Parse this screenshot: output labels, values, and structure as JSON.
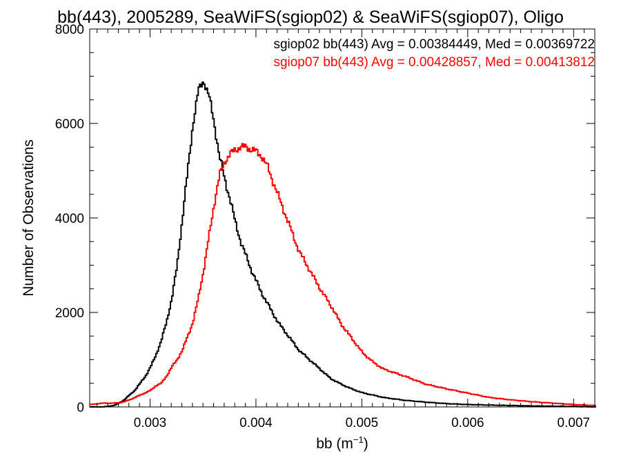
{
  "chart_data": {
    "type": "line",
    "title": "bb(443), 2005289, SeaWiFS(sgiop02) & SeaWiFS(sgiop07), Oligo",
    "xlabel": "bb (m",
    "xlabel_sup": "−1",
    "xlabel_suffix": ")",
    "ylabel": "Number of Observations",
    "xlim": [
      0.00243,
      0.0072
    ],
    "ylim": [
      0,
      8000
    ],
    "x_ticks": [
      0.003,
      0.004,
      0.005,
      0.006,
      0.007
    ],
    "x_tick_labels": [
      "0.003",
      "0.004",
      "0.005",
      "0.006",
      "0.007"
    ],
    "y_ticks": [
      0,
      2000,
      4000,
      6000,
      8000
    ],
    "y_tick_labels": [
      "0",
      "2000",
      "4000",
      "6000",
      "8000"
    ],
    "grid": false,
    "annotations": [
      {
        "text": "sgiop02 bb(443) Avg = 0.00384449, Med = 0.00369722",
        "color": "#000000"
      },
      {
        "text": "sgiop07 bb(443) Avg = 0.00428857, Med = 0.00413812",
        "color": "#ff0000"
      }
    ],
    "series": [
      {
        "color": "#000000",
        "x": [
          0.00243,
          0.00255,
          0.00265,
          0.0027,
          0.00275,
          0.0028,
          0.00285,
          0.0029,
          0.00295,
          0.003,
          0.00305,
          0.0031,
          0.00315,
          0.0032,
          0.00325,
          0.0033,
          0.00335,
          0.0034,
          0.00345,
          0.0035,
          0.00355,
          0.0036,
          0.00365,
          0.0037,
          0.00375,
          0.0038,
          0.00385,
          0.0039,
          0.00395,
          0.004,
          0.00405,
          0.0041,
          0.0042,
          0.0043,
          0.0044,
          0.0045,
          0.0046,
          0.0047,
          0.0048,
          0.0049,
          0.005,
          0.0052,
          0.0054,
          0.0056,
          0.0058,
          0.006,
          0.0062,
          0.0064,
          0.0066,
          0.0068,
          0.007,
          0.0072
        ],
        "y": [
          0,
          0,
          30,
          80,
          150,
          250,
          350,
          500,
          650,
          850,
          1100,
          1400,
          1800,
          2300,
          3000,
          4000,
          5000,
          6000,
          6700,
          6900,
          6600,
          6000,
          5300,
          4800,
          4400,
          3900,
          3500,
          3200,
          2900,
          2650,
          2400,
          2200,
          1800,
          1500,
          1200,
          1000,
          800,
          600,
          480,
          380,
          300,
          200,
          140,
          100,
          70,
          50,
          40,
          30,
          20,
          15,
          10,
          0
        ]
      },
      {
        "color": "#ff0000",
        "x": [
          0.00243,
          0.00255,
          0.00265,
          0.0027,
          0.00275,
          0.0028,
          0.00285,
          0.0029,
          0.00295,
          0.003,
          0.00305,
          0.0031,
          0.00315,
          0.0032,
          0.00325,
          0.0033,
          0.00335,
          0.0034,
          0.00345,
          0.0035,
          0.00355,
          0.0036,
          0.00365,
          0.0037,
          0.00375,
          0.0038,
          0.00385,
          0.0039,
          0.00395,
          0.004,
          0.00405,
          0.0041,
          0.00415,
          0.0042,
          0.00425,
          0.0043,
          0.00435,
          0.0044,
          0.0045,
          0.0046,
          0.0047,
          0.0048,
          0.0049,
          0.005,
          0.0051,
          0.0052,
          0.0054,
          0.0056,
          0.0058,
          0.006,
          0.0062,
          0.0064,
          0.0066,
          0.0068,
          0.007,
          0.0072
        ],
        "y": [
          50,
          80,
          80,
          90,
          110,
          150,
          200,
          250,
          300,
          350,
          450,
          500,
          650,
          850,
          1000,
          1200,
          1500,
          1800,
          2300,
          2900,
          3600,
          4300,
          4900,
          5200,
          5350,
          5450,
          5500,
          5500,
          5450,
          5400,
          5300,
          5100,
          4800,
          4500,
          4200,
          3900,
          3600,
          3300,
          2900,
          2500,
          2150,
          1750,
          1450,
          1150,
          950,
          800,
          650,
          480,
          380,
          290,
          200,
          150,
          110,
          80,
          50,
          30
        ]
      }
    ]
  }
}
